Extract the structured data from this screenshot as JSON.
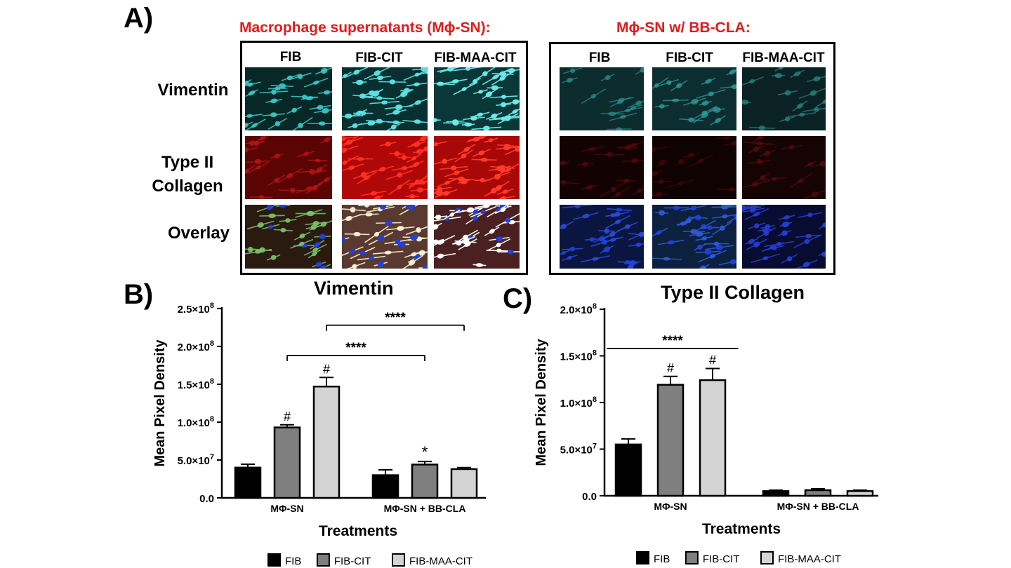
{
  "panel_a": {
    "letter": "A)",
    "left_title": "Macrophage supernatants (Mϕ-SN):",
    "right_title": "Mϕ-SN w/ BB-CLA:",
    "column_labels": [
      "FIB",
      "FIB-CIT",
      "FIB-MAA-CIT"
    ],
    "row_labels": {
      "vimentin": "Vimentin",
      "collagen_line1": "Type II",
      "collagen_line2": "Collagen",
      "overlay": "Overlay"
    },
    "colors": {
      "vimentin": "#2fc8cc",
      "collagen": "#e01010",
      "nuclei": "#2040e0"
    },
    "grid": [
      [
        {
          "bg": "#082828",
          "stain": "#3cc8c8",
          "density": 0.75,
          "overlay": false
        },
        {
          "bg": "#083030",
          "stain": "#5ae0e0",
          "density": 0.95,
          "overlay": false
        },
        {
          "bg": "#0a3838",
          "stain": "#6ae8e8",
          "density": 1.0,
          "overlay": false
        },
        {
          "bg": "#0c2c2e",
          "stain": "#2a8c8c",
          "density": 0.35,
          "overlay": false
        },
        {
          "bg": "#0c2e30",
          "stain": "#2f9a9a",
          "density": 0.45,
          "overlay": false
        },
        {
          "bg": "#0a2224",
          "stain": "#2a8484",
          "density": 0.4,
          "overlay": false
        }
      ],
      [
        {
          "bg": "#5a0404",
          "stain": "#b81414",
          "density": 0.6,
          "overlay": false
        },
        {
          "bg": "#b00808",
          "stain": "#ff3020",
          "density": 1.0,
          "overlay": false
        },
        {
          "bg": "#a80808",
          "stain": "#ff3a28",
          "density": 1.0,
          "overlay": false
        },
        {
          "bg": "#120202",
          "stain": "#5a0808",
          "density": 0.35,
          "overlay": false
        },
        {
          "bg": "#0e0202",
          "stain": "#4a0606",
          "density": 0.3,
          "overlay": false
        },
        {
          "bg": "#160404",
          "stain": "#5e0a0a",
          "density": 0.35,
          "overlay": false
        }
      ],
      [
        {
          "bg": "#2a1a10",
          "stain": "#7ac06a",
          "density": 0.8,
          "overlay": true
        },
        {
          "bg": "#5a3a30",
          "stain": "#f4ecd0",
          "density": 1.0,
          "overlay": true
        },
        {
          "bg": "#4a2020",
          "stain": "#ffffff",
          "density": 1.0,
          "overlay": true
        },
        {
          "bg": "#0a1640",
          "stain": "#2a4ad8",
          "density": 0.8,
          "overlay": true
        },
        {
          "bg": "#0c2040",
          "stain": "#2f5ad0",
          "density": 0.85,
          "overlay": true
        },
        {
          "bg": "#080c30",
          "stain": "#2a3ac8",
          "density": 0.85,
          "overlay": true
        }
      ]
    ]
  },
  "chart_data": [
    {
      "panel": "B)",
      "type": "bar",
      "title": "Vimentin",
      "xlabel": "Treatments",
      "ylabel": "Mean Pixel Density",
      "ylim": [
        0,
        250000000
      ],
      "yticks": [
        {
          "value": 0,
          "mant": "0.0",
          "exp": ""
        },
        {
          "value": 50000000,
          "mant": "5.0×10",
          "exp": "7"
        },
        {
          "value": 100000000,
          "mant": "1.0×10",
          "exp": "8"
        },
        {
          "value": 150000000,
          "mant": "1.5×10",
          "exp": "8"
        },
        {
          "value": 200000000,
          "mant": "2.0×10",
          "exp": "8"
        },
        {
          "value": 250000000,
          "mant": "2.5×10",
          "exp": "8"
        }
      ],
      "categories": [
        "MΦ-SN",
        "MΦ-SN + BB-CLA"
      ],
      "series": [
        {
          "name": "FIB",
          "color": "#000000",
          "values": [
            40000000,
            30000000
          ],
          "errors": [
            4500000,
            7000000
          ],
          "marks": [
            "",
            ""
          ]
        },
        {
          "name": "FIB-CIT",
          "color": "#7f7f7f",
          "values": [
            93000000,
            44000000
          ],
          "errors": [
            3500000,
            4000000
          ],
          "marks": [
            "#",
            "*"
          ]
        },
        {
          "name": "FIB-MAA-CIT",
          "color": "#d4d4d4",
          "values": [
            147000000,
            38000000
          ],
          "errors": [
            12000000,
            2000000
          ],
          "marks": [
            "#",
            ""
          ]
        }
      ],
      "brackets": [
        {
          "label": "****",
          "y": 228000000,
          "from": [
            0,
            2
          ],
          "to": [
            1,
            2
          ],
          "ticks": true
        },
        {
          "label": "****",
          "y": 188000000,
          "from": [
            0,
            1
          ],
          "to": [
            1,
            1
          ],
          "ticks": true
        }
      ],
      "legend": "bottom"
    },
    {
      "panel": "C)",
      "type": "bar",
      "title": "Type II Collagen",
      "xlabel": "Treatments",
      "ylabel": "Mean Pixel Density",
      "ylim": [
        0,
        200000000
      ],
      "yticks": [
        {
          "value": 0,
          "mant": "0.0",
          "exp": ""
        },
        {
          "value": 50000000,
          "mant": "5.0×10",
          "exp": "7"
        },
        {
          "value": 100000000,
          "mant": "1.0×10",
          "exp": "8"
        },
        {
          "value": 150000000,
          "mant": "1.5×10",
          "exp": "8"
        },
        {
          "value": 200000000,
          "mant": "2.0×10",
          "exp": "8"
        }
      ],
      "categories": [
        "MΦ-SN",
        "MΦ-SN + BB-CLA"
      ],
      "series": [
        {
          "name": "FIB",
          "color": "#000000",
          "values": [
            55000000,
            5000000
          ],
          "errors": [
            6000000,
            1000000
          ],
          "marks": [
            "",
            ""
          ]
        },
        {
          "name": "FIB-CIT",
          "color": "#7f7f7f",
          "values": [
            119000000,
            6000000
          ],
          "errors": [
            9000000,
            1500000
          ],
          "marks": [
            "#",
            ""
          ]
        },
        {
          "name": "FIB-MAA-CIT",
          "color": "#d4d4d4",
          "values": [
            124000000,
            5000000
          ],
          "errors": [
            12500000,
            1000000
          ],
          "marks": [
            "#",
            ""
          ]
        }
      ],
      "brackets": [
        {
          "label": "****",
          "y": 158000000,
          "from": [
            0,
            0
          ],
          "to": [
            0,
            3
          ],
          "ticks": false
        }
      ],
      "legend": "bottom"
    }
  ]
}
